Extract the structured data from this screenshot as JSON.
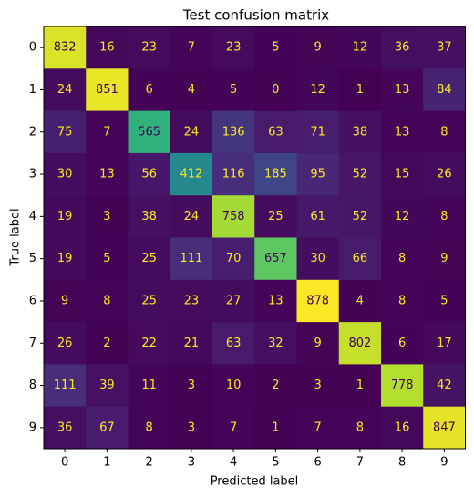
{
  "chart_data": {
    "type": "heatmap",
    "title": "Test confusion matrix",
    "xlabel": "Predicted label",
    "ylabel": "True label",
    "x_categories": [
      "0",
      "1",
      "2",
      "3",
      "4",
      "5",
      "6",
      "7",
      "8",
      "9"
    ],
    "y_categories": [
      "0",
      "1",
      "2",
      "3",
      "4",
      "5",
      "6",
      "7",
      "8",
      "9"
    ],
    "colormap": "viridis",
    "values": [
      [
        832,
        16,
        23,
        7,
        23,
        5,
        9,
        12,
        36,
        37
      ],
      [
        24,
        851,
        6,
        4,
        5,
        0,
        12,
        1,
        13,
        84
      ],
      [
        75,
        7,
        565,
        24,
        136,
        63,
        71,
        38,
        13,
        8
      ],
      [
        30,
        13,
        56,
        412,
        116,
        185,
        95,
        52,
        15,
        26
      ],
      [
        19,
        3,
        38,
        24,
        758,
        25,
        61,
        52,
        12,
        8
      ],
      [
        19,
        5,
        25,
        111,
        70,
        657,
        30,
        66,
        8,
        9
      ],
      [
        9,
        8,
        25,
        23,
        27,
        13,
        878,
        4,
        8,
        5
      ],
      [
        26,
        2,
        22,
        21,
        63,
        32,
        9,
        802,
        6,
        17
      ],
      [
        111,
        39,
        11,
        3,
        10,
        2,
        3,
        1,
        778,
        42
      ],
      [
        36,
        67,
        8,
        3,
        7,
        1,
        7,
        8,
        16,
        847
      ]
    ]
  }
}
